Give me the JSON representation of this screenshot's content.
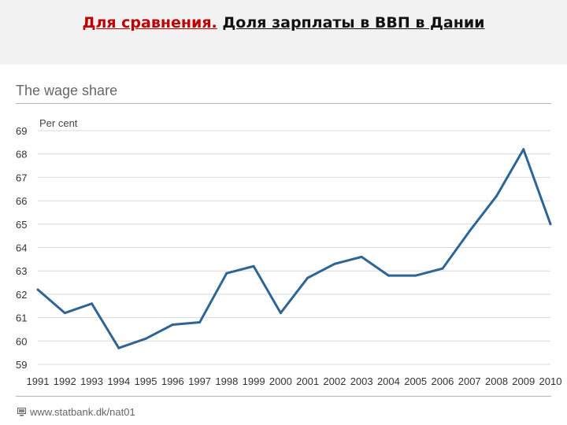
{
  "slide": {
    "title_accent": "Для сравнения.",
    "title_rest": "Доля зарплаты в ВВП в Дании"
  },
  "source_text": "www.statbank.dk/nat01",
  "colors": {
    "line": "#2f6594",
    "grid": "#d9d9d9",
    "title_accent": "#c00000"
  },
  "chart_data": {
    "type": "line",
    "title": "The wage share",
    "ylabel": "Per cent",
    "xlabel": "",
    "ylim": [
      59,
      69
    ],
    "yticks": [
      69,
      68,
      67,
      66,
      65,
      64,
      63,
      62,
      61,
      60,
      59
    ],
    "grid": true,
    "categories": [
      "1991",
      "1992",
      "1993",
      "1994",
      "1995",
      "1996",
      "1997",
      "1998",
      "1999",
      "2000",
      "2001",
      "2002",
      "2003",
      "2004",
      "2005",
      "2006",
      "2007",
      "2008",
      "2009",
      "2010"
    ],
    "series": [
      {
        "values": [
          62.2,
          61.2,
          61.6,
          59.7,
          60.1,
          60.7,
          60.8,
          62.9,
          63.2,
          61.2,
          62.7,
          63.3,
          63.6,
          62.8,
          62.8,
          63.1,
          64.7,
          66.2,
          68.2,
          65.0
        ]
      }
    ]
  }
}
